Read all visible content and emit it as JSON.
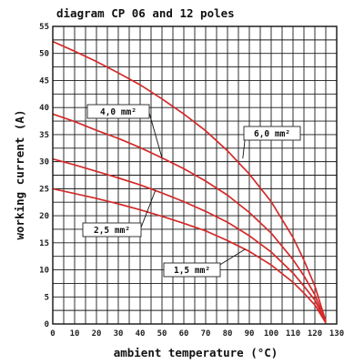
{
  "chart_data": {
    "type": "line",
    "title": "diagram CP 06 and 12 poles",
    "xlabel": "ambient temperature (°C)",
    "ylabel": "working current (A)",
    "xlim": [
      0,
      130
    ],
    "ylim": [
      0,
      55
    ],
    "x_ticks": [
      "0",
      "10",
      "20",
      "30",
      "40",
      "50",
      "60",
      "70",
      "80",
      "90",
      "100",
      "110",
      "120",
      "130"
    ],
    "y_ticks": [
      "0",
      "5",
      "10",
      "15",
      "20",
      "25",
      "30",
      "35",
      "40",
      "45",
      "50",
      "55"
    ],
    "grid": true,
    "line_color": "#d42a2a",
    "series": [
      {
        "name": "6,0 mm²",
        "x": [
          0,
          10,
          20,
          30,
          40,
          50,
          60,
          70,
          80,
          90,
          100,
          110,
          115,
          120,
          125
        ],
        "y": [
          52.2,
          50.4,
          48.5,
          46.4,
          44.2,
          41.6,
          38.8,
          35.7,
          32.0,
          27.7,
          22.6,
          16.0,
          11.8,
          7.0,
          0.5
        ]
      },
      {
        "name": "4,0 mm²",
        "x": [
          0,
          10,
          20,
          30,
          40,
          50,
          60,
          70,
          80,
          90,
          100,
          110,
          115,
          120,
          125
        ],
        "y": [
          38.8,
          37.4,
          35.8,
          34.3,
          32.6,
          30.7,
          28.7,
          26.4,
          23.8,
          20.6,
          16.8,
          11.9,
          8.9,
          5.4,
          0.4
        ]
      },
      {
        "name": "2,5 mm²",
        "x": [
          0,
          10,
          20,
          30,
          40,
          50,
          60,
          70,
          80,
          90,
          100,
          110,
          115,
          120,
          125
        ],
        "y": [
          30.5,
          29.4,
          28.2,
          27.0,
          25.7,
          24.2,
          22.6,
          20.8,
          18.8,
          16.3,
          13.3,
          9.4,
          7.0,
          4.4,
          0.3
        ]
      },
      {
        "name": "1,5 mm²",
        "x": [
          0,
          10,
          20,
          30,
          40,
          50,
          60,
          70,
          80,
          90,
          100,
          110,
          115,
          120,
          125
        ],
        "y": [
          25.0,
          24.1,
          23.2,
          22.2,
          21.1,
          19.9,
          18.6,
          17.2,
          15.4,
          13.4,
          10.9,
          7.7,
          5.7,
          3.5,
          0.2
        ]
      }
    ]
  }
}
